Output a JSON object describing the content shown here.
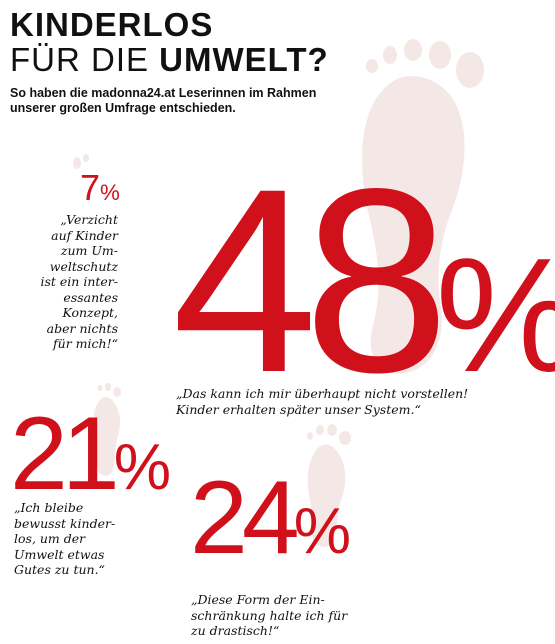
{
  "header": {
    "title_line1": "KINDERLOS",
    "title_line2_prefix": "FÜR DIE ",
    "title_line2_bold": "UMWELT?",
    "subtitle_line1": "So haben die madonna24.at Leserinnen im Rahmen",
    "subtitle_line2": "unserer großen Umfrage entschieden."
  },
  "chart_data": {
    "type": "infographic",
    "title": "KINDERLOS FÜR DIE UMWELT?",
    "subtitle": "So haben die madonna24.at Leserinnen im Rahmen unserer großen Umfrage entschieden.",
    "unit": "%",
    "categories": [
      "„Verzicht auf Kinder zum Umweltschutz ist ein interessantes Konzept, aber nichts für mich!“",
      "„Das kann ich mir überhaupt nicht vorstellen! Kinder erhalten später unser System.“",
      "„Ich bleibe bewusst kinderlos, um der Umwelt etwas Gutes zu tun.“",
      "„Diese Form der Einschränkung halte ich für zu drastisch!“"
    ],
    "values": [
      7,
      48,
      21,
      24
    ]
  },
  "items": [
    {
      "value": "7",
      "sign": "%",
      "quote_lines": [
        "„Verzicht",
        "auf Kinder",
        "zum Um-",
        "weltschutz",
        "ist ein inter-",
        "essantes",
        "Konzept,",
        "aber nichts",
        "für mich!“"
      ]
    },
    {
      "value": "48",
      "sign": "%",
      "quote_lines": [
        "„Das kann ich mir überhaupt nicht vorstellen!",
        "Kinder erhalten später unser System.“"
      ]
    },
    {
      "value": "21",
      "sign": "%",
      "quote_lines": [
        "„Ich bleibe",
        "bewusst kinder-",
        "los, um der",
        "Umwelt etwas",
        "Gutes zu tun.“"
      ]
    },
    {
      "value": "24",
      "sign": "%",
      "quote_lines": [
        "„Diese Form der Ein-",
        "schränkung halte ich für",
        "zu drastisch!“"
      ]
    }
  ],
  "colors": {
    "accent": "#d0101b",
    "decor": "#f4e8e6"
  },
  "icons": [
    "footprint-icon"
  ]
}
